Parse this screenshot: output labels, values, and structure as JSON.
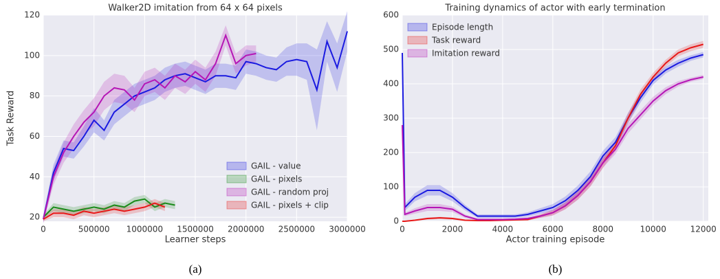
{
  "chart_data": [
    {
      "type": "line",
      "title": "Walker2D imitation from 64 x 64 pixels",
      "xlabel": "Learner steps",
      "ylabel": "Task Reward",
      "caption": "(a)",
      "xlim": [
        0,
        3000000
      ],
      "ylim": [
        18,
        120
      ],
      "xticks": [
        0,
        500000,
        1000000,
        1500000,
        2000000,
        2500000,
        3000000
      ],
      "yticks": [
        20,
        40,
        60,
        80,
        100,
        120
      ],
      "grid": true,
      "legend": "lower right",
      "series": [
        {
          "name": "GAIL - value",
          "color": "#1a1ae0",
          "x": [
            0,
            100000,
            200000,
            300000,
            400000,
            500000,
            600000,
            700000,
            800000,
            900000,
            1000000,
            1100000,
            1200000,
            1300000,
            1400000,
            1500000,
            1600000,
            1700000,
            1800000,
            1900000,
            2000000,
            2100000,
            2200000,
            2300000,
            2400000,
            2500000,
            2600000,
            2700000,
            2800000,
            2900000,
            3000000
          ],
          "values": [
            19,
            42,
            54,
            53,
            60,
            68,
            63,
            72,
            76,
            80,
            82,
            84,
            88,
            90,
            91,
            89,
            87,
            90,
            90,
            89,
            97,
            96,
            94,
            93,
            97,
            98,
            97,
            83,
            107,
            94,
            112
          ],
          "spread": [
            2,
            4,
            4,
            4,
            5,
            6,
            5,
            6,
            6,
            6,
            6,
            6,
            6,
            6,
            6,
            6,
            6,
            6,
            6,
            6,
            6,
            6,
            6,
            6,
            7,
            8,
            9,
            20,
            10,
            12,
            10
          ]
        },
        {
          "name": "GAIL - pixels",
          "color": "#1a8a1a",
          "x": [
            0,
            100000,
            200000,
            300000,
            400000,
            500000,
            600000,
            700000,
            800000,
            900000,
            1000000,
            1100000,
            1200000,
            1300000
          ],
          "values": [
            20,
            25,
            24,
            23,
            24,
            25,
            24,
            26,
            25,
            28,
            29,
            25,
            27,
            26
          ],
          "spread": [
            1,
            2,
            2,
            2,
            2,
            2,
            2,
            2,
            2,
            2,
            2,
            2,
            2,
            2
          ]
        },
        {
          "name": "GAIL - random proj",
          "color": "#b515b5",
          "x": [
            0,
            100000,
            200000,
            300000,
            400000,
            500000,
            600000,
            700000,
            800000,
            900000,
            1000000,
            1100000,
            1200000,
            1300000,
            1400000,
            1500000,
            1600000,
            1700000,
            1800000,
            1900000,
            2000000,
            2100000
          ],
          "values": [
            19,
            40,
            52,
            60,
            67,
            72,
            80,
            84,
            83,
            78,
            86,
            88,
            84,
            90,
            87,
            92,
            88,
            96,
            110,
            96,
            100,
            101
          ],
          "spread": [
            2,
            4,
            5,
            6,
            6,
            7,
            7,
            7,
            7,
            6,
            6,
            6,
            6,
            6,
            6,
            6,
            6,
            6,
            5,
            5,
            5,
            4
          ]
        },
        {
          "name": "GAIL - pixels + clip",
          "color": "#e81818",
          "x": [
            0,
            100000,
            200000,
            300000,
            400000,
            500000,
            600000,
            700000,
            800000,
            900000,
            1000000,
            1100000,
            1200000
          ],
          "values": [
            19,
            22,
            22,
            21,
            23,
            22,
            23,
            24,
            23,
            24,
            25,
            27,
            25
          ],
          "spread": [
            1,
            2,
            2,
            2,
            2,
            2,
            2,
            2,
            2,
            2,
            2,
            2,
            2
          ]
        }
      ]
    },
    {
      "type": "line",
      "title": "Training dynamics of actor with early termination",
      "xlabel": "Actor training episode",
      "caption": "(b)",
      "xlim": [
        0,
        12200
      ],
      "ylim": [
        0,
        600
      ],
      "xticks": [
        0,
        2000,
        4000,
        6000,
        8000,
        10000,
        12000
      ],
      "yticks": [
        0,
        100,
        200,
        300,
        400,
        500,
        600
      ],
      "grid": true,
      "legend": "upper left",
      "series": [
        {
          "name": "Episode length",
          "color": "#1a1ae0",
          "x": [
            0,
            100,
            500,
            1000,
            1500,
            2000,
            2500,
            3000,
            3500,
            4000,
            4500,
            5000,
            5500,
            6000,
            6500,
            7000,
            7500,
            8000,
            8500,
            9000,
            9500,
            10000,
            10500,
            11000,
            11500,
            12000
          ],
          "values": [
            490,
            40,
            70,
            90,
            90,
            70,
            40,
            15,
            15,
            15,
            15,
            20,
            30,
            40,
            60,
            90,
            130,
            190,
            230,
            300,
            360,
            410,
            440,
            460,
            475,
            485
          ],
          "spread": [
            10,
            10,
            12,
            15,
            15,
            12,
            8,
            5,
            5,
            5,
            5,
            6,
            8,
            10,
            12,
            14,
            15,
            15,
            15,
            15,
            14,
            12,
            10,
            10,
            8,
            8
          ]
        },
        {
          "name": "Task reward",
          "color": "#e81818",
          "x": [
            0,
            100,
            500,
            1000,
            1500,
            2000,
            2500,
            3000,
            3500,
            4000,
            4500,
            5000,
            5500,
            6000,
            6500,
            7000,
            7500,
            8000,
            8500,
            9000,
            9500,
            10000,
            10500,
            11000,
            11500,
            12000
          ],
          "values": [
            0,
            0,
            3,
            8,
            10,
            8,
            3,
            2,
            2,
            3,
            4,
            5,
            15,
            25,
            45,
            75,
            115,
            170,
            220,
            300,
            370,
            420,
            460,
            490,
            505,
            515
          ],
          "spread": [
            1,
            1,
            2,
            3,
            3,
            3,
            2,
            1,
            1,
            2,
            2,
            3,
            5,
            8,
            10,
            12,
            14,
            15,
            15,
            15,
            14,
            12,
            10,
            10,
            10,
            10
          ]
        },
        {
          "name": "Imitation reward",
          "color": "#b515b5",
          "x": [
            0,
            100,
            500,
            1000,
            1500,
            2000,
            2500,
            3000,
            3500,
            4000,
            4500,
            5000,
            5500,
            6000,
            6500,
            7000,
            7500,
            8000,
            8500,
            9000,
            9500,
            10000,
            10500,
            11000,
            11500,
            12000
          ],
          "values": [
            280,
            20,
            30,
            40,
            40,
            35,
            15,
            5,
            5,
            5,
            6,
            8,
            15,
            25,
            45,
            75,
            115,
            170,
            210,
            270,
            310,
            350,
            380,
            400,
            412,
            420
          ],
          "spread": [
            10,
            5,
            8,
            10,
            10,
            8,
            5,
            3,
            3,
            3,
            3,
            4,
            5,
            8,
            10,
            12,
            13,
            14,
            14,
            14,
            13,
            12,
            10,
            8,
            6,
            6
          ]
        }
      ]
    }
  ]
}
